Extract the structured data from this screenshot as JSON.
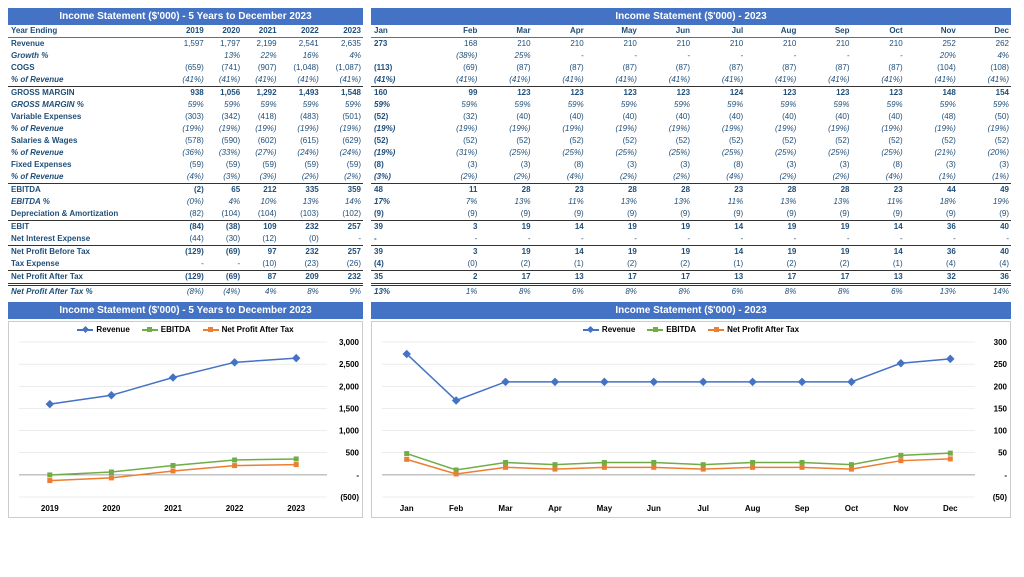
{
  "left_title": "Income Statement ($'000) - 5 Years to December 2023",
  "right_title": "Income Statement ($'000) - 2023",
  "years": [
    "Year Ending",
    "2019",
    "2020",
    "2021",
    "2022",
    "2023"
  ],
  "months": [
    "Jan",
    "Feb",
    "Mar",
    "Apr",
    "May",
    "Jun",
    "Jul",
    "Aug",
    "Sep",
    "Oct",
    "Nov",
    "Dec"
  ],
  "rows_5y": [
    {
      "label": "Revenue",
      "vals": [
        "1,597",
        "1,797",
        "2,199",
        "2,541",
        "2,635"
      ],
      "cls": ""
    },
    {
      "label": "Growth %",
      "vals": [
        "",
        "13%",
        "22%",
        "16%",
        "4%"
      ],
      "cls": "italic"
    },
    {
      "label": "COGS",
      "vals": [
        "(659)",
        "(741)",
        "(907)",
        "(1,048)",
        "(1,087)"
      ],
      "cls": ""
    },
    {
      "label": "% of Revenue",
      "vals": [
        "(41%)",
        "(41%)",
        "(41%)",
        "(41%)",
        "(41%)"
      ],
      "cls": "italic"
    },
    {
      "label": "GROSS MARGIN",
      "vals": [
        "938",
        "1,056",
        "1,292",
        "1,493",
        "1,548"
      ],
      "cls": "bold-row"
    },
    {
      "label": "GROSS MARGIN %",
      "vals": [
        "59%",
        "59%",
        "59%",
        "59%",
        "59%"
      ],
      "cls": "italic"
    },
    {
      "label": "Variable Expenses",
      "vals": [
        "(303)",
        "(342)",
        "(418)",
        "(483)",
        "(501)"
      ],
      "cls": ""
    },
    {
      "label": "% of Revenue",
      "vals": [
        "(19%)",
        "(19%)",
        "(19%)",
        "(19%)",
        "(19%)"
      ],
      "cls": "italic"
    },
    {
      "label": "Salaries & Wages",
      "vals": [
        "(578)",
        "(590)",
        "(602)",
        "(615)",
        "(629)"
      ],
      "cls": ""
    },
    {
      "label": "% of Revenue",
      "vals": [
        "(36%)",
        "(33%)",
        "(27%)",
        "(24%)",
        "(24%)"
      ],
      "cls": "italic"
    },
    {
      "label": "Fixed Expenses",
      "vals": [
        "(59)",
        "(59)",
        "(59)",
        "(59)",
        "(59)"
      ],
      "cls": ""
    },
    {
      "label": "% of Revenue",
      "vals": [
        "(4%)",
        "(3%)",
        "(3%)",
        "(2%)",
        "(2%)"
      ],
      "cls": "italic"
    },
    {
      "label": "EBITDA",
      "vals": [
        "(2)",
        "65",
        "212",
        "335",
        "359"
      ],
      "cls": "bold-row"
    },
    {
      "label": "EBITDA %",
      "vals": [
        "(0%)",
        "4%",
        "10%",
        "13%",
        "14%"
      ],
      "cls": "italic"
    },
    {
      "label": "Depreciation & Amortization",
      "vals": [
        "(82)",
        "(104)",
        "(104)",
        "(103)",
        "(102)"
      ],
      "cls": ""
    },
    {
      "label": "EBIT",
      "vals": [
        "(84)",
        "(38)",
        "109",
        "232",
        "257"
      ],
      "cls": "bold-row"
    },
    {
      "label": "Net Interest Expense",
      "vals": [
        "(44)",
        "(30)",
        "(12)",
        "(0)",
        "-"
      ],
      "cls": ""
    },
    {
      "label": "Net Profit Before Tax",
      "vals": [
        "(129)",
        "(69)",
        "97",
        "232",
        "257"
      ],
      "cls": "bold-row"
    },
    {
      "label": "Tax Expense",
      "vals": [
        "-",
        "-",
        "(10)",
        "(23)",
        "(26)"
      ],
      "cls": ""
    },
    {
      "label": "Net Profit After Tax",
      "vals": [
        "(129)",
        "(69)",
        "87",
        "209",
        "232"
      ],
      "cls": "final-row"
    },
    {
      "label": "Net Profit After Tax %",
      "vals": [
        "(8%)",
        "(4%)",
        "4%",
        "8%",
        "9%"
      ],
      "cls": "italic"
    }
  ],
  "rows_m": [
    {
      "label": "",
      "vals": [
        "273",
        "168",
        "210",
        "210",
        "210",
        "210",
        "210",
        "210",
        "210",
        "210",
        "252",
        "262"
      ],
      "cls": ""
    },
    {
      "label": "",
      "vals": [
        "",
        "(38%)",
        "25%",
        "-",
        "-",
        "-",
        "-",
        "-",
        "-",
        "-",
        "20%",
        "4%"
      ],
      "cls": "italic"
    },
    {
      "label": "",
      "vals": [
        "(113)",
        "(69)",
        "(87)",
        "(87)",
        "(87)",
        "(87)",
        "(87)",
        "(87)",
        "(87)",
        "(87)",
        "(104)",
        "(108)"
      ],
      "cls": ""
    },
    {
      "label": "",
      "vals": [
        "(41%)",
        "(41%)",
        "(41%)",
        "(41%)",
        "(41%)",
        "(41%)",
        "(41%)",
        "(41%)",
        "(41%)",
        "(41%)",
        "(41%)",
        "(41%)"
      ],
      "cls": "italic"
    },
    {
      "label": "",
      "vals": [
        "160",
        "99",
        "123",
        "123",
        "123",
        "123",
        "124",
        "123",
        "123",
        "123",
        "148",
        "154"
      ],
      "cls": "bold-row"
    },
    {
      "label": "",
      "vals": [
        "59%",
        "59%",
        "59%",
        "59%",
        "59%",
        "59%",
        "59%",
        "59%",
        "59%",
        "59%",
        "59%",
        "59%"
      ],
      "cls": "italic"
    },
    {
      "label": "",
      "vals": [
        "(52)",
        "(32)",
        "(40)",
        "(40)",
        "(40)",
        "(40)",
        "(40)",
        "(40)",
        "(40)",
        "(40)",
        "(48)",
        "(50)"
      ],
      "cls": ""
    },
    {
      "label": "",
      "vals": [
        "(19%)",
        "(19%)",
        "(19%)",
        "(19%)",
        "(19%)",
        "(19%)",
        "(19%)",
        "(19%)",
        "(19%)",
        "(19%)",
        "(19%)",
        "(19%)"
      ],
      "cls": "italic"
    },
    {
      "label": "",
      "vals": [
        "(52)",
        "(52)",
        "(52)",
        "(52)",
        "(52)",
        "(52)",
        "(52)",
        "(52)",
        "(52)",
        "(52)",
        "(52)",
        "(52)"
      ],
      "cls": ""
    },
    {
      "label": "",
      "vals": [
        "(19%)",
        "(31%)",
        "(25%)",
        "(25%)",
        "(25%)",
        "(25%)",
        "(25%)",
        "(25%)",
        "(25%)",
        "(25%)",
        "(21%)",
        "(20%)"
      ],
      "cls": "italic"
    },
    {
      "label": "",
      "vals": [
        "(8)",
        "(3)",
        "(3)",
        "(8)",
        "(3)",
        "(3)",
        "(8)",
        "(3)",
        "(3)",
        "(8)",
        "(3)",
        "(3)"
      ],
      "cls": ""
    },
    {
      "label": "",
      "vals": [
        "(3%)",
        "(2%)",
        "(2%)",
        "(4%)",
        "(2%)",
        "(2%)",
        "(4%)",
        "(2%)",
        "(2%)",
        "(4%)",
        "(1%)",
        "(1%)"
      ],
      "cls": "italic"
    },
    {
      "label": "",
      "vals": [
        "48",
        "11",
        "28",
        "23",
        "28",
        "28",
        "23",
        "28",
        "28",
        "23",
        "44",
        "49"
      ],
      "cls": "bold-row"
    },
    {
      "label": "",
      "vals": [
        "17%",
        "7%",
        "13%",
        "11%",
        "13%",
        "13%",
        "11%",
        "13%",
        "13%",
        "11%",
        "18%",
        "19%"
      ],
      "cls": "italic"
    },
    {
      "label": "",
      "vals": [
        "(9)",
        "(9)",
        "(9)",
        "(9)",
        "(9)",
        "(9)",
        "(9)",
        "(9)",
        "(9)",
        "(9)",
        "(9)",
        "(9)"
      ],
      "cls": ""
    },
    {
      "label": "",
      "vals": [
        "39",
        "3",
        "19",
        "14",
        "19",
        "19",
        "14",
        "19",
        "19",
        "14",
        "36",
        "40"
      ],
      "cls": "bold-row"
    },
    {
      "label": "",
      "vals": [
        "-",
        "-",
        "-",
        "-",
        "-",
        "-",
        "-",
        "-",
        "-",
        "-",
        "-",
        "-"
      ],
      "cls": ""
    },
    {
      "label": "",
      "vals": [
        "39",
        "3",
        "19",
        "14",
        "19",
        "19",
        "14",
        "19",
        "19",
        "14",
        "36",
        "40"
      ],
      "cls": "bold-row"
    },
    {
      "label": "",
      "vals": [
        "(4)",
        "(0)",
        "(2)",
        "(1)",
        "(2)",
        "(2)",
        "(1)",
        "(2)",
        "(2)",
        "(1)",
        "(4)",
        "(4)"
      ],
      "cls": ""
    },
    {
      "label": "",
      "vals": [
        "35",
        "2",
        "17",
        "13",
        "17",
        "17",
        "13",
        "17",
        "17",
        "13",
        "32",
        "36"
      ],
      "cls": "final-row"
    },
    {
      "label": "",
      "vals": [
        "13%",
        "1%",
        "8%",
        "6%",
        "8%",
        "8%",
        "6%",
        "8%",
        "8%",
        "6%",
        "13%",
        "14%"
      ],
      "cls": "italic"
    }
  ],
  "legend": [
    "Revenue",
    "EBITDA",
    "Net Profit After Tax"
  ],
  "colors": {
    "revenue": "#4472c4",
    "ebitda": "#70ad47",
    "npt": "#ed7d31",
    "grid": "#d9d9d9",
    "axis": "#333",
    "bg": "#fff"
  },
  "chart5y": {
    "ymin": -500,
    "ymax": 3000,
    "ystep": 500,
    "x": [
      "2019",
      "2020",
      "2021",
      "2022",
      "2023"
    ],
    "series": {
      "revenue": [
        1597,
        1797,
        2199,
        2541,
        2635
      ],
      "ebitda": [
        -2,
        65,
        212,
        335,
        359
      ],
      "npt": [
        -129,
        -69,
        87,
        209,
        232
      ]
    }
  },
  "chart_m": {
    "ymin": -50,
    "ymax": 300,
    "ystep": 50,
    "x": [
      "Jan",
      "Feb",
      "Mar",
      "Apr",
      "May",
      "Jun",
      "Jul",
      "Aug",
      "Sep",
      "Oct",
      "Nov",
      "Dec"
    ],
    "series": {
      "revenue": [
        273,
        168,
        210,
        210,
        210,
        210,
        210,
        210,
        210,
        210,
        252,
        262
      ],
      "ebitda": [
        48,
        11,
        28,
        23,
        28,
        28,
        23,
        28,
        28,
        23,
        44,
        49
      ],
      "npt": [
        35,
        2,
        17,
        13,
        17,
        17,
        13,
        17,
        17,
        13,
        32,
        36
      ]
    }
  }
}
